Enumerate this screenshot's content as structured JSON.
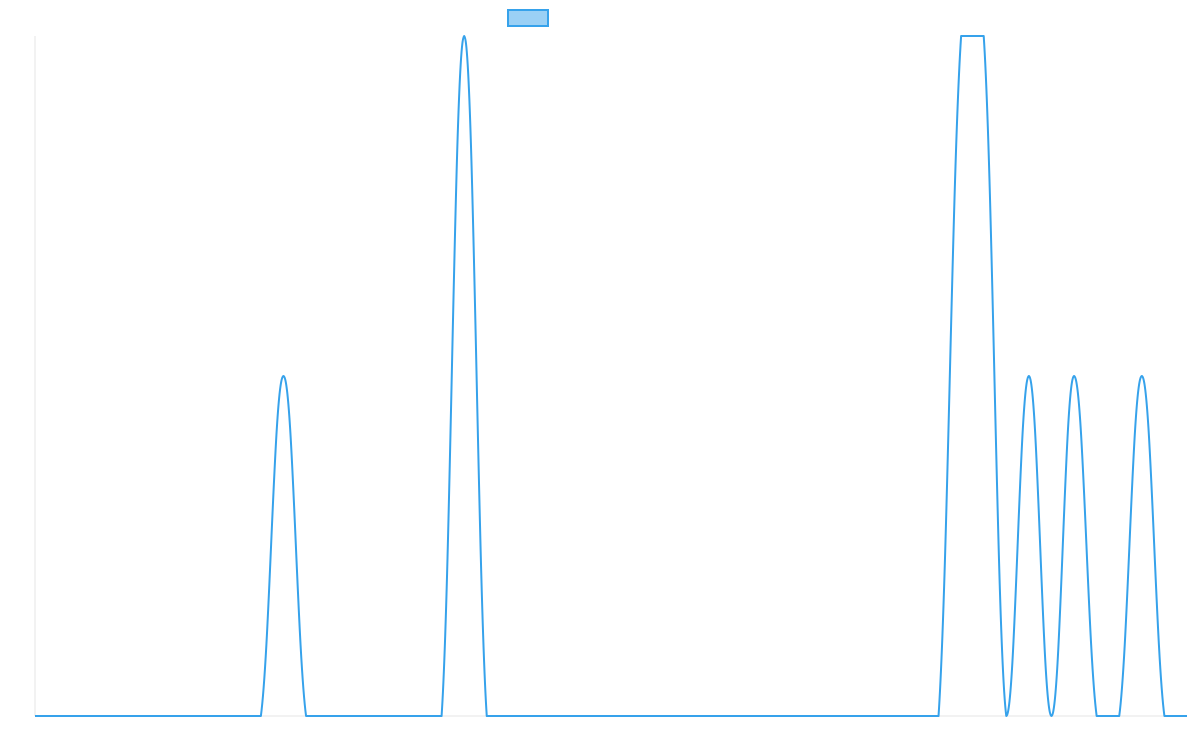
{
  "chart_data": {
    "type": "line",
    "title": "",
    "xlabel": "",
    "ylabel": "",
    "grid": false,
    "legend_position": "top-center",
    "x_range": [
      0,
      51
    ],
    "ylim": [
      0,
      2
    ],
    "series": [
      {
        "name": "",
        "color": "#36a2eb",
        "fill_color": "#9ad0f5",
        "values": [
          0,
          0,
          0,
          0,
          0,
          0,
          0,
          0,
          0,
          0,
          0,
          1,
          0,
          0,
          0,
          0,
          0,
          0,
          0,
          2,
          0,
          0,
          0,
          0,
          0,
          0,
          0,
          0,
          0,
          0,
          0,
          0,
          0,
          0,
          0,
          0,
          0,
          0,
          0,
          0,
          0,
          2,
          2,
          0,
          1,
          0,
          1,
          0,
          0,
          1,
          0,
          0
        ]
      }
    ]
  }
}
